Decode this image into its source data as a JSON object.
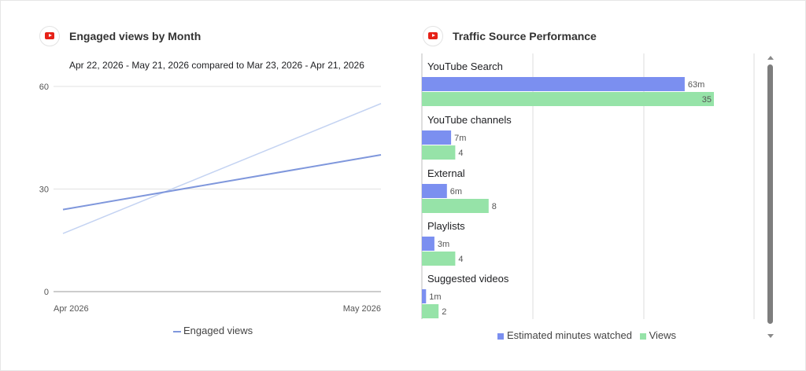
{
  "left_card": {
    "title": "Engaged views by Month",
    "icon": "youtube-icon",
    "subtitle": "Apr 22, 2026 - May 21, 2026 compared to Mar 23, 2026 - Apr 21, 2026",
    "legend_label": "Engaged views"
  },
  "right_card": {
    "title": "Traffic Source Performance",
    "icon": "youtube-icon",
    "legend": [
      {
        "label": "Estimated minutes watched",
        "color": "#7b8ff0"
      },
      {
        "label": "Views",
        "color": "#96e3a8"
      }
    ]
  },
  "chart_data": [
    {
      "type": "line",
      "title": "Engaged views by Month",
      "x": [
        "Apr 2026",
        "May 2026"
      ],
      "series": [
        {
          "name": "Engaged views",
          "values": [
            24,
            40
          ],
          "color": "#7f97dc"
        },
        {
          "values": [
            17,
            55
          ],
          "color": "#c4d3f2"
        }
      ],
      "yticks": [
        0,
        30,
        60
      ],
      "ylim": [
        0,
        60
      ],
      "grid": true,
      "legend_position": "bottom"
    },
    {
      "type": "bar",
      "orientation": "horizontal",
      "title": "Traffic Source Performance",
      "categories": [
        "YouTube Search",
        "YouTube channels",
        "External",
        "Playlists",
        "Suggested videos"
      ],
      "series": [
        {
          "name": "Estimated minutes watched",
          "values": [
            63,
            7,
            6,
            3,
            1
          ],
          "labels": [
            "63m",
            "7m",
            "6m",
            "3m",
            "1m"
          ],
          "color": "#7b8ff0"
        },
        {
          "name": "Views",
          "values": [
            35,
            4,
            8,
            4,
            2
          ],
          "labels": [
            "35",
            "4",
            "8",
            "4",
            "2"
          ],
          "color": "#96e3a8"
        }
      ],
      "grid": true,
      "legend_position": "bottom"
    }
  ]
}
